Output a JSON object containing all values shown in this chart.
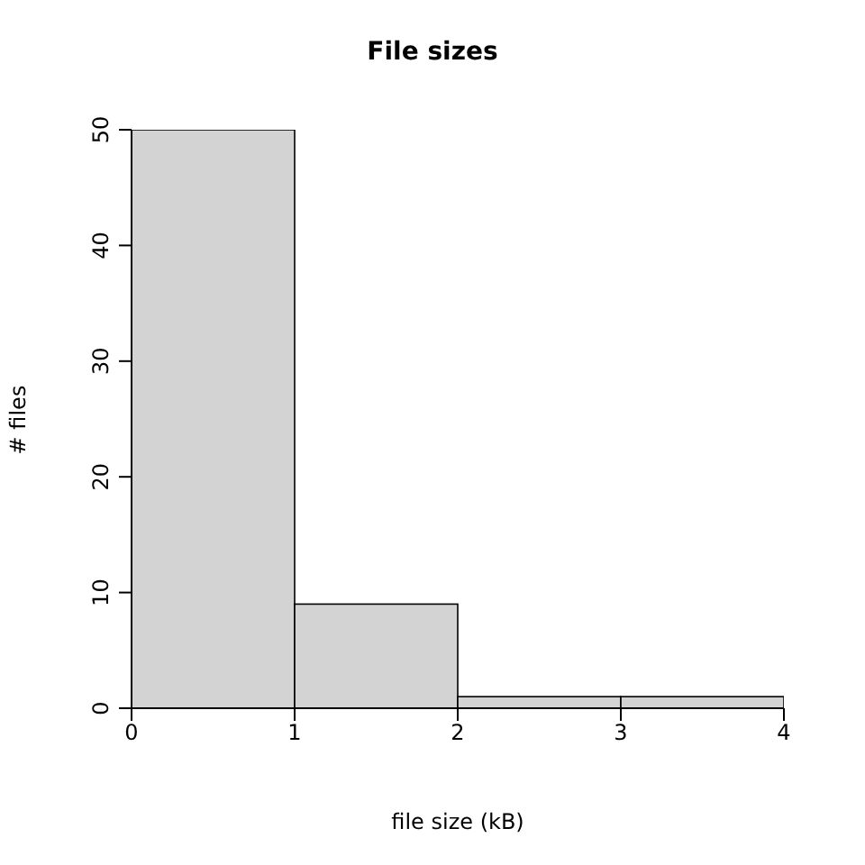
{
  "chart_data": {
    "type": "histogram",
    "title": "File sizes",
    "xlabel": "file size (kB)",
    "ylabel": "# files",
    "bins": [
      0,
      1,
      2,
      3,
      4
    ],
    "values": [
      50,
      9,
      1,
      1
    ],
    "color": "#d3d3d3",
    "xlim": [
      0,
      4
    ],
    "xticks": [
      0,
      1,
      2,
      3,
      4
    ],
    "ylim": [
      0,
      50
    ],
    "yticks": [
      0,
      10,
      20,
      30,
      40,
      50
    ]
  }
}
